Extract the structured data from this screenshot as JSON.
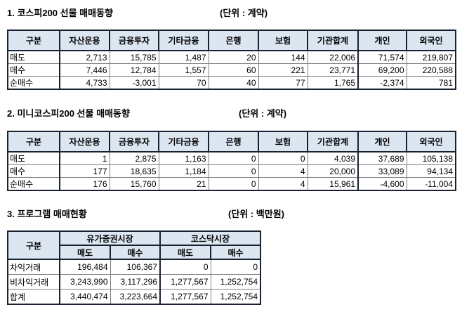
{
  "colors": {
    "page_bg": "#ffffff",
    "header_bg": "#dce6f1",
    "border_strong": "#17212f",
    "border_thin": "#7f7f7f",
    "text": "#000000"
  },
  "sections": [
    {
      "title": "1. 코스피200 선물 매매동향",
      "unit": "(단위 : 계약)",
      "columns": [
        "구분",
        "자산운용",
        "금융투자",
        "기타금융",
        "은행",
        "보험",
        "기관합계",
        "개인",
        "외국인"
      ],
      "rows": [
        {
          "label": "매도",
          "values": [
            "2,713",
            "15,785",
            "1,487",
            "20",
            "144",
            "22,006",
            "71,574",
            "219,807"
          ]
        },
        {
          "label": "매수",
          "values": [
            "7,446",
            "12,784",
            "1,557",
            "60",
            "221",
            "23,771",
            "69,200",
            "220,588"
          ]
        },
        {
          "label": "순매수",
          "values": [
            "4,733",
            "-3,001",
            "70",
            "40",
            "77",
            "1,765",
            "-2,374",
            "781"
          ]
        }
      ]
    },
    {
      "title": "2. 미니코스피200 선물 매매동향",
      "unit": "(단위 : 계약)",
      "columns": [
        "구분",
        "자산운용",
        "금융투자",
        "기타금융",
        "은행",
        "보험",
        "기관합계",
        "개인",
        "외국인"
      ],
      "rows": [
        {
          "label": "매도",
          "values": [
            "1",
            "2,875",
            "1,163",
            "0",
            "0",
            "4,039",
            "37,689",
            "105,138"
          ]
        },
        {
          "label": "매수",
          "values": [
            "177",
            "18,635",
            "1,184",
            "0",
            "4",
            "20,000",
            "33,089",
            "94,134"
          ]
        },
        {
          "label": "순매수",
          "values": [
            "176",
            "15,760",
            "21",
            "0",
            "4",
            "15,961",
            "-4,600",
            "-11,004"
          ]
        }
      ]
    },
    {
      "title": "3. 프로그램 매매현황",
      "unit": "(단위 : 백만원)",
      "corner": "구분",
      "groups": [
        "유가증권시장",
        "코스닥시장"
      ],
      "sub_columns": [
        "매도",
        "매수",
        "매도",
        "매수"
      ],
      "rows": [
        {
          "label": "차익거래",
          "values": [
            "196,484",
            "106,367",
            "0",
            "0"
          ]
        },
        {
          "label": "비차익거래",
          "values": [
            "3,243,990",
            "3,117,296",
            "1,277,567",
            "1,252,754"
          ]
        },
        {
          "label": "합계",
          "values": [
            "3,440,474",
            "3,223,664",
            "1,277,567",
            "1,252,754"
          ]
        }
      ]
    }
  ]
}
